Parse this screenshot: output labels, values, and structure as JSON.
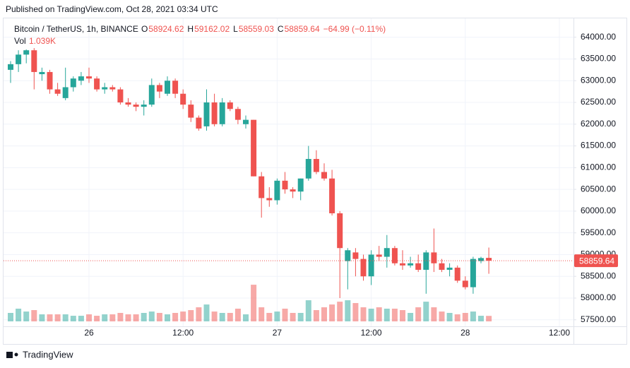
{
  "page": {
    "published": "Published on TradingView.com, Oct 28, 2021 03:34 UTC",
    "brand": "TradingView"
  },
  "chart_data": {
    "type": "candlestick",
    "symbol": "Bitcoin / TetherUS, 1h, BINANCE",
    "open_prefix": "O",
    "high_prefix": "H",
    "low_prefix": "L",
    "close_prefix": "C",
    "change_label": "−64.99 (−0.11%)",
    "up_color": "#26a69a",
    "down_color": "#ef5350",
    "categories": [
      null,
      null,
      null,
      null,
      null,
      null,
      null,
      null,
      null,
      null,
      "26",
      null,
      null,
      null,
      null,
      null,
      null,
      null,
      null,
      null,
      null,
      null,
      "12:00",
      null,
      null,
      null,
      null,
      null,
      null,
      null,
      null,
      null,
      null,
      null,
      "27",
      null,
      null,
      null,
      null,
      null,
      null,
      null,
      null,
      null,
      null,
      null,
      "12:00",
      null,
      null,
      null,
      null,
      null,
      null,
      null,
      null,
      null,
      null,
      null,
      "28",
      null,
      null,
      null,
      null,
      null,
      null,
      null,
      null,
      null,
      null,
      null,
      "12:00",
      null
    ],
    "open": [
      63250,
      63380,
      63600,
      63700,
      63150,
      63200,
      62800,
      62600,
      62850,
      63000,
      63100,
      63050,
      62800,
      62850,
      62800,
      62500,
      62450,
      62400,
      62450,
      62900,
      62700,
      63000,
      62700,
      62450,
      62150,
      61950,
      62500,
      62000,
      62500,
      62350,
      62000,
      62100,
      60800,
      60300,
      60250,
      60700,
      60500,
      60450,
      60750,
      61200,
      60900,
      60750,
      59950,
      58850,
      59050,
      58900,
      58500,
      59000,
      58950,
      59150,
      58800,
      58750,
      58800,
      58650,
      59050,
      58800,
      58650,
      58700,
      58400,
      58250,
      58850,
      58924.62,
      null,
      null,
      null,
      null,
      null,
      null,
      null,
      null,
      null,
      null
    ],
    "high": [
      63450,
      63700,
      63720,
      63750,
      63300,
      63250,
      62950,
      63300,
      63100,
      63200,
      63300,
      63100,
      62950,
      62900,
      62850,
      62600,
      62500,
      62550,
      63050,
      62950,
      63100,
      63050,
      62800,
      62550,
      62200,
      62800,
      62700,
      62600,
      62550,
      62400,
      62200,
      62100,
      60900,
      60550,
      60750,
      60900,
      60550,
      60750,
      61500,
      61400,
      61100,
      60950,
      60000,
      59150,
      59150,
      59000,
      59100,
      59200,
      59450,
      59200,
      59100,
      58950,
      59000,
      59100,
      59600,
      58900,
      58800,
      58750,
      58500,
      58950,
      58950,
      59162.02,
      null,
      null,
      null,
      null,
      null,
      null,
      null,
      null,
      null,
      null
    ],
    "low": [
      62950,
      63200,
      63400,
      62800,
      63000,
      62700,
      62650,
      62550,
      62750,
      62900,
      62950,
      62750,
      62700,
      62750,
      62450,
      62400,
      62300,
      62200,
      62400,
      62600,
      62650,
      62600,
      62350,
      62050,
      61850,
      61850,
      61950,
      61950,
      62300,
      62000,
      61900,
      60800,
      59850,
      60100,
      60150,
      60400,
      60300,
      60250,
      60700,
      60850,
      60700,
      59900,
      58000,
      58200,
      58500,
      58400,
      58300,
      58850,
      58700,
      58750,
      58650,
      58700,
      58600,
      58100,
      58600,
      58600,
      58500,
      58350,
      58200,
      58100,
      58800,
      58559.03,
      null,
      null,
      null,
      null,
      null,
      null,
      null,
      null,
      null,
      null
    ],
    "close": [
      63380,
      63600,
      63700,
      63200,
      63200,
      62800,
      62700,
      62850,
      63050,
      63100,
      63050,
      62800,
      62850,
      62800,
      62500,
      62450,
      62400,
      62450,
      62900,
      62750,
      63000,
      62700,
      62450,
      62150,
      61900,
      62500,
      62000,
      62500,
      62350,
      62100,
      62100,
      60800,
      60300,
      60250,
      60700,
      60500,
      60450,
      60750,
      61200,
      60900,
      60750,
      59950,
      59150,
      59100,
      58900,
      58500,
      59000,
      58950,
      59150,
      58800,
      58750,
      58800,
      58650,
      59050,
      58800,
      58650,
      58700,
      58400,
      58250,
      58900,
      58920,
      58859.64,
      null,
      null,
      null,
      null,
      null,
      null,
      null,
      null,
      null,
      null
    ],
    "volume": {
      "name": "Vol",
      "last_label": "1.039K",
      "values": [
        1600,
        2400,
        1860,
        2130,
        1330,
        1330,
        1330,
        1330,
        1060,
        1060,
        1330,
        1060,
        1330,
        1330,
        1600,
        1330,
        1330,
        1600,
        1860,
        1600,
        1330,
        1600,
        1860,
        2130,
        2660,
        3190,
        1860,
        1600,
        1600,
        2400,
        1330,
        6920,
        2660,
        1600,
        1860,
        2400,
        1600,
        1600,
        3990,
        2130,
        2660,
        3190,
        3720,
        3990,
        3460,
        2660,
        2400,
        2660,
        2400,
        2400,
        2130,
        1600,
        2660,
        3720,
        2660,
        1860,
        1600,
        1330,
        1600,
        1860,
        1060,
        1039,
        null,
        null,
        null,
        null,
        null,
        null,
        null,
        null,
        null,
        null
      ],
      "ylim": [
        0,
        8000
      ]
    },
    "ylim": [
      57350,
      64450
    ],
    "yticks": [
      {
        "value": 57500,
        "label": "57500.00"
      },
      {
        "value": 58000,
        "label": "58000.00"
      },
      {
        "value": 58500,
        "label": "58500.00"
      },
      {
        "value": 59000,
        "label": "59000.00"
      },
      {
        "value": 59500,
        "label": "59500.00"
      },
      {
        "value": 60000,
        "label": "60000.00"
      },
      {
        "value": 60500,
        "label": "60500.00"
      },
      {
        "value": 61000,
        "label": "61000.00"
      },
      {
        "value": 61500,
        "label": "61500.00"
      },
      {
        "value": 62000,
        "label": "62000.00"
      },
      {
        "value": 62500,
        "label": "62500.00"
      },
      {
        "value": 63000,
        "label": "63000.00"
      },
      {
        "value": 63500,
        "label": "63500.00"
      },
      {
        "value": 64000,
        "label": "64000.00"
      }
    ],
    "grid": true
  }
}
